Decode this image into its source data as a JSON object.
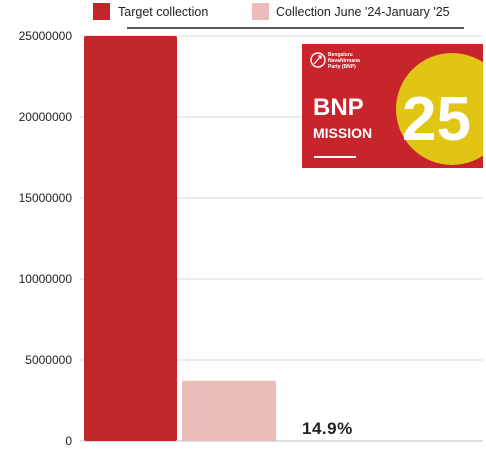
{
  "colors": {
    "target": "#c0262a",
    "collection": "#eabbb9",
    "logo_bg": "#c8242b",
    "logo_accent": "#e0c515",
    "grid": "#cccccc",
    "text": "#222222"
  },
  "chart_data": {
    "type": "bar",
    "categories": [
      ""
    ],
    "series": [
      {
        "name": "Target collection",
        "values": [
          25000000
        ]
      },
      {
        "name": "Collection June '24-January '25",
        "values": [
          3720000
        ]
      }
    ],
    "ylim": [
      0,
      25000000
    ],
    "yticks": [
      "0",
      "5000000",
      "10000000",
      "15000000",
      "20000000",
      "25000000"
    ],
    "grid": true,
    "legend_position": "top",
    "annotation": "14.9%"
  },
  "logo": {
    "party_line1": "Bengaluru",
    "party_line2": "NavaNirmana",
    "party_line3": "Party (BNP)",
    "word1": "BNP",
    "word2": "MISSION",
    "number": "25"
  }
}
